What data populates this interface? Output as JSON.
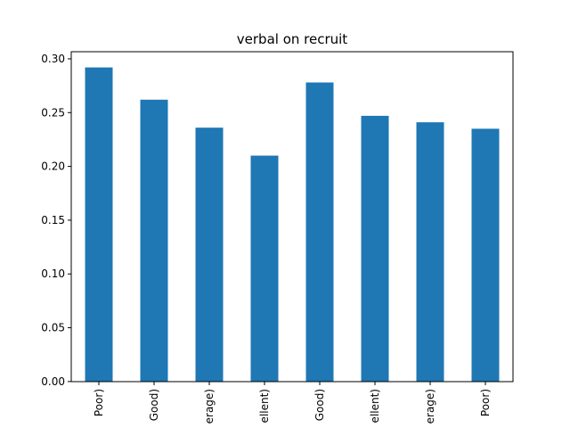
{
  "chart_data": {
    "type": "bar",
    "title": "verbal on recruit",
    "xlabel": "",
    "ylabel": "",
    "categories": [
      "Poor)",
      "Good)",
      "erage)",
      "ellent)",
      "Good)",
      "ellent)",
      "erage)",
      "Poor)"
    ],
    "values": [
      0.292,
      0.262,
      0.236,
      0.21,
      0.278,
      0.247,
      0.241,
      0.235
    ],
    "ylim": [
      0,
      0.3
    ],
    "yticks": [
      0.0,
      0.05,
      0.1,
      0.15,
      0.2,
      0.25,
      0.3
    ],
    "ytick_labels": [
      "0.00",
      "0.05",
      "0.10",
      "0.15",
      "0.20",
      "0.25",
      "0.30"
    ],
    "bar_color": "#1f77b4",
    "grid": false,
    "legend": "none"
  }
}
